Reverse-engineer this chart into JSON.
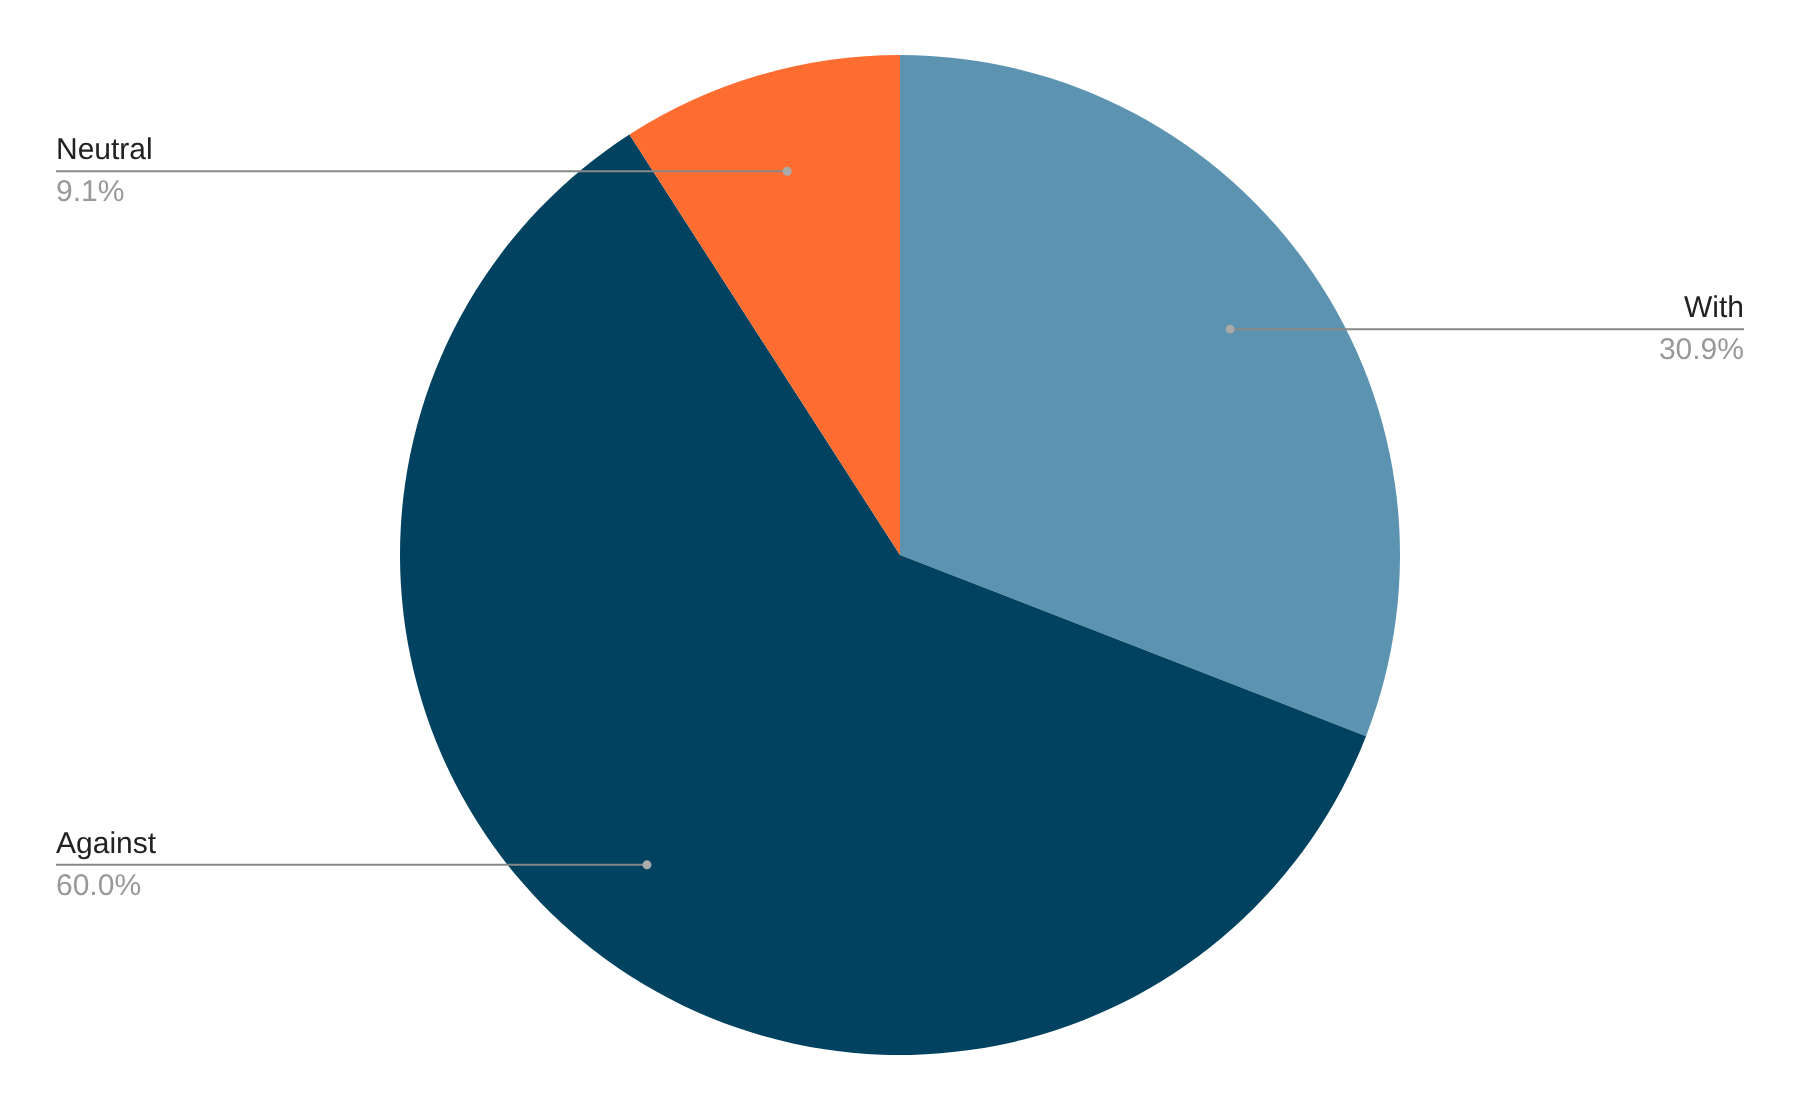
{
  "chart_data": {
    "type": "pie",
    "categories": [
      "With",
      "Against",
      "Neutral"
    ],
    "values": [
      30.9,
      60.0,
      9.1
    ],
    "colors": [
      "#5b93b1",
      "#00425f",
      "#ff6d31"
    ],
    "value_labels": [
      "30.9%",
      "60.0%",
      "9.1%"
    ]
  }
}
